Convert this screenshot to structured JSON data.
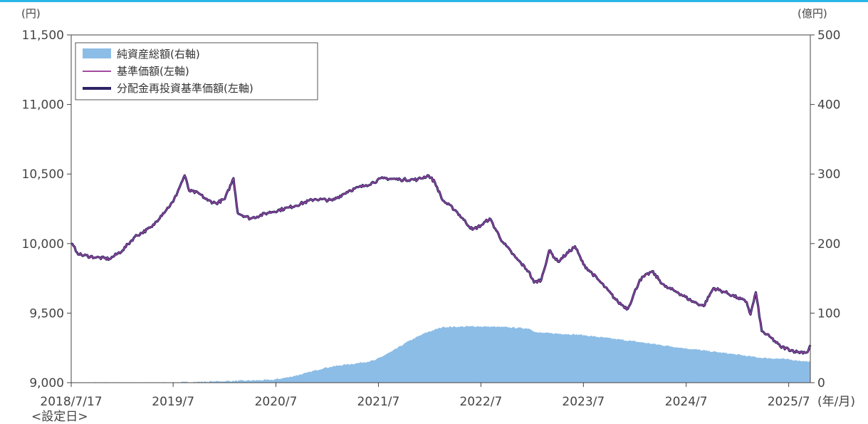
{
  "chart_data": {
    "type": "line",
    "left_unit": "(円)",
    "right_unit": "(億円)",
    "x_unit": "(年/月)",
    "start_label": "2018/7/17",
    "start_note": "<設定日>",
    "x_ticks": [
      "2018/7/17",
      "2019/7",
      "2020/7",
      "2021/7",
      "2022/7",
      "2023/7",
      "2024/7",
      "2025/7"
    ],
    "y_left_ticks": [
      "9,000",
      "9,500",
      "10,000",
      "10,500",
      "11,000",
      "11,500"
    ],
    "y_right_ticks": [
      "0",
      "100",
      "200",
      "300",
      "400",
      "500"
    ],
    "ylim_left": [
      9000,
      11500
    ],
    "ylim_right": [
      0,
      500
    ],
    "xlim": [
      "2018-07-17",
      "2025-09-30"
    ],
    "grid": false,
    "legend_position": "top-left",
    "series": [
      {
        "name": "純資産総額(右軸)",
        "axis": "right",
        "kind": "area",
        "color": "#8cbde6",
        "points": [
          [
            "2018-07-17",
            0
          ],
          [
            "2019-01-01",
            0
          ],
          [
            "2019-07-01",
            0
          ],
          [
            "2019-10-01",
            1
          ],
          [
            "2020-01-01",
            2
          ],
          [
            "2020-04-01",
            3
          ],
          [
            "2020-07-01",
            4
          ],
          [
            "2020-09-01",
            8
          ],
          [
            "2020-11-01",
            14
          ],
          [
            "2021-01-01",
            21
          ],
          [
            "2021-03-01",
            25
          ],
          [
            "2021-05-01",
            28
          ],
          [
            "2021-07-01",
            32
          ],
          [
            "2021-09-01",
            45
          ],
          [
            "2021-11-01",
            60
          ],
          [
            "2022-01-01",
            72
          ],
          [
            "2022-03-01",
            80
          ],
          [
            "2022-07-01",
            81
          ],
          [
            "2022-10-01",
            80
          ],
          [
            "2023-01-01",
            78
          ],
          [
            "2023-02-01",
            72
          ],
          [
            "2023-07-01",
            69
          ],
          [
            "2024-01-01",
            60
          ],
          [
            "2024-07-01",
            50
          ],
          [
            "2025-01-01",
            41
          ],
          [
            "2025-04-01",
            36
          ],
          [
            "2025-07-01",
            34
          ],
          [
            "2025-09-30",
            30
          ]
        ]
      },
      {
        "name": "基準価額(左軸)",
        "axis": "left",
        "kind": "line",
        "color": "#a34ba0",
        "points": [
          [
            "2018-07-17",
            10000
          ],
          [
            "2018-08-15",
            9920
          ],
          [
            "2018-10-15",
            9900
          ],
          [
            "2018-12-01",
            9890
          ],
          [
            "2019-01-15",
            9950
          ],
          [
            "2019-03-01",
            10050
          ],
          [
            "2019-05-01",
            10120
          ],
          [
            "2019-06-01",
            10200
          ],
          [
            "2019-07-15",
            10300
          ],
          [
            "2019-08-10",
            10420
          ],
          [
            "2019-08-25",
            10490
          ],
          [
            "2019-09-10",
            10380
          ],
          [
            "2019-10-15",
            10360
          ],
          [
            "2019-11-15",
            10310
          ],
          [
            "2019-12-15",
            10290
          ],
          [
            "2020-01-15",
            10320
          ],
          [
            "2020-02-15",
            10470
          ],
          [
            "2020-03-01",
            10220
          ],
          [
            "2020-04-15",
            10180
          ],
          [
            "2020-06-15",
            10220
          ],
          [
            "2020-09-01",
            10260
          ],
          [
            "2020-12-01",
            10320
          ],
          [
            "2021-02-01",
            10310
          ],
          [
            "2021-04-01",
            10380
          ],
          [
            "2021-06-01",
            10420
          ],
          [
            "2021-08-01",
            10470
          ],
          [
            "2021-10-01",
            10460
          ],
          [
            "2021-12-01",
            10460
          ],
          [
            "2022-01-10",
            10490
          ],
          [
            "2022-02-01",
            10440
          ],
          [
            "2022-03-01",
            10310
          ],
          [
            "2022-04-15",
            10240
          ],
          [
            "2022-05-15",
            10170
          ],
          [
            "2022-06-15",
            10100
          ],
          [
            "2022-07-15",
            10130
          ],
          [
            "2022-08-15",
            10180
          ],
          [
            "2022-10-01",
            10010
          ],
          [
            "2022-11-15",
            9900
          ],
          [
            "2023-01-01",
            9800
          ],
          [
            "2023-01-20",
            9720
          ],
          [
            "2023-02-15",
            9740
          ],
          [
            "2023-03-15",
            9950
          ],
          [
            "2023-04-15",
            9870
          ],
          [
            "2023-06-15",
            9980
          ],
          [
            "2023-07-15",
            9850
          ],
          [
            "2023-09-15",
            9720
          ],
          [
            "2023-11-15",
            9580
          ],
          [
            "2023-12-20",
            9530
          ],
          [
            "2024-02-01",
            9740
          ],
          [
            "2024-03-15",
            9800
          ],
          [
            "2024-05-01",
            9690
          ],
          [
            "2024-06-15",
            9650
          ],
          [
            "2024-08-01",
            9590
          ],
          [
            "2024-09-15",
            9550
          ],
          [
            "2024-10-20",
            9680
          ],
          [
            "2024-12-01",
            9650
          ],
          [
            "2025-01-15",
            9610
          ],
          [
            "2025-02-15",
            9580
          ],
          [
            "2025-03-01",
            9490
          ],
          [
            "2025-03-20",
            9650
          ],
          [
            "2025-04-10",
            9370
          ],
          [
            "2025-05-15",
            9320
          ],
          [
            "2025-06-15",
            9260
          ],
          [
            "2025-08-15",
            9220
          ],
          [
            "2025-09-20",
            9220
          ],
          [
            "2025-09-30",
            9270
          ]
        ]
      },
      {
        "name": "分配金再投資基準価額(左軸)",
        "axis": "left",
        "kind": "line",
        "color": "#2e2466",
        "same_as": "基準価額(左軸)"
      }
    ]
  }
}
